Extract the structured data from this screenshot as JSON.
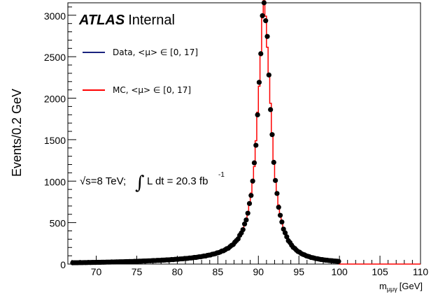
{
  "chart_data": {
    "type": "histogram",
    "xlabel_main": "m",
    "xlabel_sub": "μμγ",
    "xlabel_unit": "[GeV]",
    "ylabel": "Events/0.2 GeV",
    "xlim": [
      66.5,
      110
    ],
    "ylim": [
      0,
      3150
    ],
    "x_ticks": [
      70,
      75,
      80,
      85,
      90,
      95,
      100,
      105,
      110
    ],
    "y_ticks": [
      0,
      500,
      1000,
      1500,
      2000,
      2500,
      3000
    ],
    "atlas_label": "ATLAS",
    "atlas_suffix": "Internal",
    "lumi_sqrt": "√s=8 TeV;",
    "lumi_integral": "∫",
    "lumi_text": "L dt = 20.3 fb",
    "lumi_exp": "-1",
    "legend": [
      {
        "name": "Data, <μ> ∈ [0, 17]",
        "color": "#1a237e"
      },
      {
        "name": "MC, <μ> ∈ [0, 17]",
        "color": "#ff0000"
      }
    ],
    "curve_model": {
      "peak_x": 90.75,
      "peak_y": 3060,
      "gamma": 1.9,
      "tail_from": 90.75,
      "tail_slope": 0.0026,
      "tail_offset": 0.03,
      "x_start": 67,
      "x_end": 100,
      "data_step": 0.2,
      "mc_step": 0.2
    },
    "colors": {
      "data_marker": "#000000",
      "mc_line": "#ff0000",
      "axis": "#000000"
    }
  }
}
